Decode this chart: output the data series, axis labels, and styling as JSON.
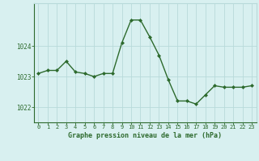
{
  "hours": [
    0,
    1,
    2,
    3,
    4,
    5,
    6,
    7,
    8,
    9,
    10,
    11,
    12,
    13,
    14,
    15,
    16,
    17,
    18,
    19,
    20,
    21,
    22,
    23
  ],
  "pressure": [
    1023.1,
    1023.2,
    1023.2,
    1023.5,
    1023.15,
    1023.1,
    1023.0,
    1023.1,
    1023.1,
    1024.1,
    1024.85,
    1024.85,
    1024.3,
    1023.7,
    1022.9,
    1022.2,
    1022.2,
    1022.1,
    1022.4,
    1022.7,
    1022.65,
    1022.65,
    1022.65,
    1022.7
  ],
  "line_color": "#2d6a2d",
  "marker": "D",
  "marker_size": 2.0,
  "line_width": 1.0,
  "bg_color": "#d8f0f0",
  "grid_color": "#b8dada",
  "tick_color": "#2d6a2d",
  "xlabel": "Graphe pression niveau de la mer (hPa)",
  "yticks": [
    1022,
    1023,
    1024
  ],
  "ylim": [
    1021.5,
    1025.4
  ],
  "xlim": [
    -0.5,
    23.5
  ]
}
